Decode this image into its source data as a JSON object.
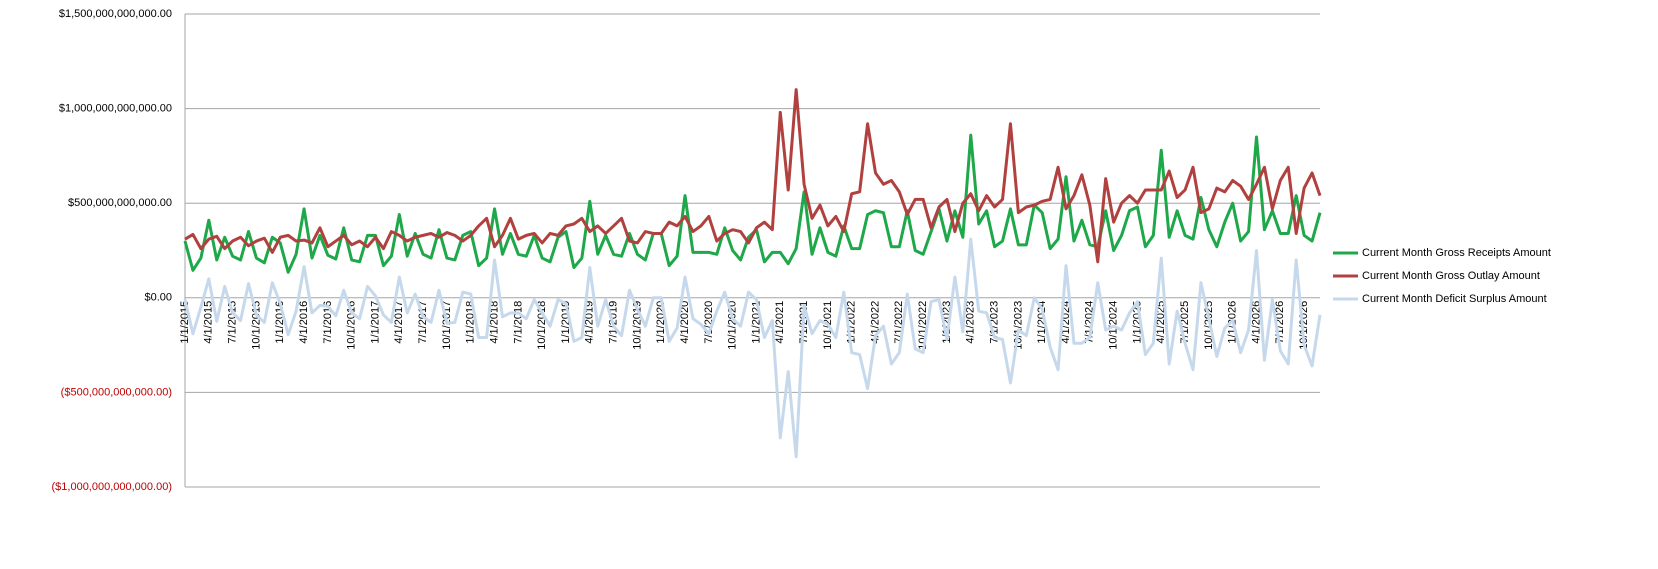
{
  "chart_data": {
    "type": "line",
    "categories": [
      "1/1/2015",
      null,
      null,
      "4/1/2015",
      null,
      null,
      "7/1/2015",
      null,
      null,
      "10/1/2015",
      null,
      null,
      "1/1/2016",
      null,
      null,
      "4/1/2016",
      null,
      null,
      "7/1/2016",
      null,
      null,
      "10/1/2016",
      null,
      null,
      "1/1/2017",
      null,
      null,
      "4/1/2017",
      null,
      null,
      "7/1/2017",
      null,
      null,
      "10/1/2017",
      null,
      null,
      "1/1/2018",
      null,
      null,
      "4/1/2018",
      null,
      null,
      "7/1/2018",
      null,
      null,
      "10/1/2018",
      null,
      null,
      "1/1/2019",
      null,
      null,
      "4/1/2019",
      null,
      null,
      "7/1/2019",
      null,
      null,
      "10/1/2019",
      null,
      null,
      "1/1/2020",
      null,
      null,
      "4/1/2020",
      null,
      null,
      "7/1/2020",
      null,
      null,
      "10/1/2020",
      null,
      null,
      "1/1/2021",
      null,
      null,
      "4/1/2021",
      null,
      null,
      "7/1/2021",
      null,
      null,
      "10/1/2021",
      null,
      null,
      "1/1/2022",
      null,
      null,
      "4/1/2022",
      null,
      null,
      "7/1/2022",
      null,
      null,
      "10/1/2022",
      null,
      null,
      "1/1/2023",
      null,
      null,
      "4/1/2023",
      null,
      null,
      "7/1/2023",
      null,
      null,
      "10/1/2023",
      null,
      null,
      "1/1/2024",
      null,
      null,
      "4/1/2024",
      null,
      null,
      "7/1/2024",
      null,
      null,
      "10/1/2024",
      null,
      null,
      "1/1/2025",
      null,
      null,
      "4/1/2025",
      null,
      null,
      "7/1/2025",
      null,
      null,
      "10/1/2025",
      null,
      null,
      "1/1/2026",
      null,
      null,
      "4/1/2026",
      null,
      null,
      "7/1/2026",
      null,
      null,
      "10/1/2026",
      null,
      null
    ],
    "series": [
      {
        "name": "Current Month Gross Receipts Amount",
        "color": "#1ea84a",
        "values": [
          300000000000.0,
          145000000000.0,
          210000000000.0,
          410000000000.0,
          200000000000.0,
          320000000000.0,
          220000000000.0,
          200000000000.0,
          350000000000.0,
          210000000000.0,
          185000000000.0,
          320000000000.0,
          290000000000.0,
          135000000000.0,
          230000000000.0,
          470000000000.0,
          210000000000.0,
          330000000000.0,
          225000000000.0,
          205000000000.0,
          370000000000.0,
          200000000000.0,
          190000000000.0,
          330000000000.0,
          330000000000.0,
          170000000000.0,
          220000000000.0,
          440000000000.0,
          220000000000.0,
          340000000000.0,
          230000000000.0,
          210000000000.0,
          360000000000.0,
          210000000000.0,
          200000000000.0,
          330000000000.0,
          350000000000.0,
          170000000000.0,
          210000000000.0,
          470000000000.0,
          230000000000.0,
          340000000000.0,
          230000000000.0,
          220000000000.0,
          330000000000.0,
          210000000000.0,
          190000000000.0,
          320000000000.0,
          350000000000.0,
          160000000000.0,
          210000000000.0,
          510000000000.0,
          230000000000.0,
          330000000000.0,
          230000000000.0,
          220000000000.0,
          340000000000.0,
          230000000000.0,
          200000000000.0,
          340000000000.0,
          340000000000.0,
          170000000000.0,
          220000000000.0,
          540000000000.0,
          240000000000.0,
          240000000000.0,
          240000000000.0,
          230000000000.0,
          370000000000.0,
          250000000000.0,
          200000000000.0,
          320000000000.0,
          360000000000.0,
          190000000000.0,
          240000000000.0,
          240000000000.0,
          180000000000.0,
          260000000000.0,
          560000000000.0,
          230000000000.0,
          370000000000.0,
          240000000000.0,
          220000000000.0,
          380000000000.0,
          260000000000.0,
          260000000000.0,
          440000000000.0,
          460000000000.0,
          450000000000.0,
          270000000000.0,
          270000000000.0,
          460000000000.0,
          250000000000.0,
          230000000000.0,
          350000000000.0,
          470000000000.0,
          300000000000.0,
          460000000000.0,
          320000000000.0,
          860000000000.0,
          390000000000.0,
          460000000000.0,
          270000000000.0,
          300000000000.0,
          470000000000.0,
          280000000000.0,
          280000000000.0,
          490000000000.0,
          450000000000.0,
          260000000000.0,
          310000000000.0,
          640000000000.0,
          300000000000.0,
          410000000000.0,
          280000000000.0,
          270000000000.0,
          460000000000.0,
          250000000000.0,
          330000000000.0,
          460000000000.0,
          480000000000.0,
          270000000000.0,
          330000000000.0,
          780000000000.0,
          320000000000.0,
          460000000000.0,
          330000000000.0,
          310000000000.0,
          530000000000.0,
          360000000000.0,
          270000000000.0,
          400000000000.0,
          500000000000.0,
          300000000000.0,
          350000000000.0,
          850000000000.0,
          360000000000.0,
          460000000000.0,
          340000000000.0,
          340000000000.0,
          540000000000.0,
          330000000000.0,
          300000000000.0,
          450000000000.0
        ]
      },
      {
        "name": "Current Month Gross Outlay Amount",
        "color": "#b0413e",
        "values": [
          310000000000.0,
          335000000000.0,
          260000000000.0,
          310000000000.0,
          325000000000.0,
          260000000000.0,
          300000000000.0,
          320000000000.0,
          275000000000.0,
          300000000000.0,
          315000000000.0,
          240000000000.0,
          320000000000.0,
          330000000000.0,
          300000000000.0,
          305000000000.0,
          290000000000.0,
          370000000000.0,
          270000000000.0,
          300000000000.0,
          330000000000.0,
          280000000000.0,
          300000000000.0,
          270000000000.0,
          320000000000.0,
          260000000000.0,
          350000000000.0,
          330000000000.0,
          300000000000.0,
          320000000000.0,
          330000000000.0,
          340000000000.0,
          320000000000.0,
          345000000000.0,
          330000000000.0,
          300000000000.0,
          330000000000.0,
          380000000000.0,
          420000000000.0,
          270000000000.0,
          330000000000.0,
          420000000000.0,
          310000000000.0,
          330000000000.0,
          340000000000.0,
          290000000000.0,
          340000000000.0,
          330000000000.0,
          380000000000.0,
          390000000000.0,
          420000000000.0,
          350000000000.0,
          380000000000.0,
          340000000000.0,
          380000000000.0,
          420000000000.0,
          300000000000.0,
          290000000000.0,
          350000000000.0,
          340000000000.0,
          340000000000.0,
          400000000000.0,
          380000000000.0,
          430000000000.0,
          350000000000.0,
          380000000000.0,
          430000000000.0,
          300000000000.0,
          340000000000.0,
          360000000000.0,
          350000000000.0,
          290000000000.0,
          370000000000.0,
          400000000000.0,
          360000000000.0,
          980000000000.0,
          570000000000.0,
          1100000000000.0,
          600000000000.0,
          420000000000.0,
          490000000000.0,
          380000000000.0,
          430000000000.0,
          350000000000.0,
          550000000000.0,
          560000000000.0,
          920000000000.0,
          660000000000.0,
          600000000000.0,
          620000000000.0,
          560000000000.0,
          440000000000.0,
          520000000000.0,
          520000000000.0,
          370000000000.0,
          480000000000.0,
          520000000000.0,
          350000000000.0,
          500000000000.0,
          550000000000.0,
          460000000000.0,
          540000000000.0,
          480000000000.0,
          520000000000.0,
          920000000000.0,
          450000000000.0,
          480000000000.0,
          490000000000.0,
          510000000000.0,
          520000000000.0,
          690000000000.0,
          470000000000.0,
          540000000000.0,
          650000000000.0,
          490000000000.0,
          190000000000.0,
          630000000000.0,
          400000000000.0,
          500000000000.0,
          540000000000.0,
          500000000000.0,
          570000000000.0,
          570000000000.0,
          570000000000.0,
          670000000000.0,
          530000000000.0,
          570000000000.0,
          690000000000.0,
          450000000000.0,
          470000000000.0,
          580000000000.0,
          560000000000.0,
          620000000000.0,
          590000000000.0,
          520000000000.0,
          600000000000.0,
          690000000000.0,
          470000000000.0,
          620000000000.0,
          690000000000.0,
          340000000000.0,
          580000000000.0,
          660000000000.0,
          540000000000.0
        ]
      },
      {
        "name": "Current Month Deficit Surplus Amount",
        "color": "#c6d9ec",
        "values": [
          -10000000000.0,
          -190000000000.0,
          -50000000000.0,
          100000000000.0,
          -125000000000.0,
          60000000000.0,
          -80000000000.0,
          -120000000000.0,
          75000000000.0,
          -90000000000.0,
          -130000000000.0,
          80000000000.0,
          -30000000000.0,
          -195000000000.0,
          -70000000000.0,
          165000000000.0,
          -80000000000.0,
          -40000000000.0,
          -45000000000.0,
          -95000000000.0,
          40000000000.0,
          -80000000000.0,
          -110000000000.0,
          60000000000.0,
          10000000000.0,
          -90000000000.0,
          -130000000000.0,
          110000000000.0,
          -80000000000.0,
          20000000000.0,
          -100000000000.0,
          -130000000000.0,
          40000000000.0,
          -135000000000.0,
          -130000000000.0,
          30000000000.0,
          20000000000.0,
          -210000000000.0,
          -210000000000.0,
          200000000000.0,
          -100000000000.0,
          -80000000000.0,
          -80000000000.0,
          -110000000000.0,
          -10000000000.0,
          -80000000000.0,
          -150000000000.0,
          -10000000000.0,
          -30000000000.0,
          -230000000000.0,
          -210000000000.0,
          160000000000.0,
          -150000000000.0,
          -10000000000.0,
          -150000000000.0,
          -200000000000.0,
          40000000000.0,
          -60000000000.0,
          -150000000000.0,
          0,
          0,
          -230000000000.0,
          -160000000000.0,
          110000000000.0,
          -110000000000.0,
          -140000000000.0,
          -190000000000.0,
          -70000000000.0,
          30000000000.0,
          -110000000000.0,
          -150000000000.0,
          30000000000.0,
          -10000000000.0,
          -210000000000.0,
          -120000000000.0,
          -740000000000.0,
          -390000000000.0,
          -840000000000.0,
          -40000000000.0,
          -190000000000.0,
          -120000000000.0,
          -140000000000.0,
          -210000000000.0,
          30000000000.0,
          -290000000000.0,
          -300000000000.0,
          -480000000000.0,
          -200000000000.0,
          -150000000000.0,
          -350000000000.0,
          -290000000000.0,
          20000000000.0,
          -270000000000.0,
          -290000000000.0,
          -20000000000.0,
          -10000000000.0,
          -220000000000.0,
          110000000000.0,
          -180000000000.0,
          310000000000.0,
          -70000000000.0,
          -80000000000.0,
          -210000000000.0,
          -220000000000.0,
          -450000000000.0,
          -170000000000.0,
          -200000000000.0,
          0,
          -60000000000.0,
          -260000000000.0,
          -380000000000.0,
          170000000000.0,
          -240000000000.0,
          -240000000000.0,
          -210000000000.0,
          80000000000.0,
          -170000000000.0,
          -150000000000.0,
          -170000000000.0,
          -80000000000.0,
          -20000000000.0,
          -300000000000.0,
          -240000000000.0,
          210000000000.0,
          -350000000000.0,
          -70000000000.0,
          -240000000000.0,
          -380000000000.0,
          80000000000.0,
          -110000000000.0,
          -310000000000.0,
          -160000000000.0,
          -120000000000.0,
          -290000000000.0,
          -170000000000.0,
          250000000000.0,
          -330000000000.0,
          -10000000000.0,
          -280000000000.0,
          -350000000000.0,
          200000000000.0,
          -250000000000.0,
          -360000000000.0,
          -90000000000.0
        ]
      }
    ],
    "ylim": [
      -1000000000000,
      1500000000000
    ],
    "yticks": [
      {
        "value": -1000000000000,
        "label": "($1,000,000,000,000.00)"
      },
      {
        "value": -500000000000,
        "label": "($500,000,000,000.00)"
      },
      {
        "value": 0,
        "label": "$0.00"
      },
      {
        "value": 500000000000,
        "label": "$500,000,000,000.00"
      },
      {
        "value": 1000000000000,
        "label": "$1,000,000,000,000.00"
      },
      {
        "value": 1500000000000,
        "label": "$1,500,000,000,000.00"
      }
    ],
    "negative_tick_color": "#c00000",
    "grid": true,
    "legend": "right"
  }
}
